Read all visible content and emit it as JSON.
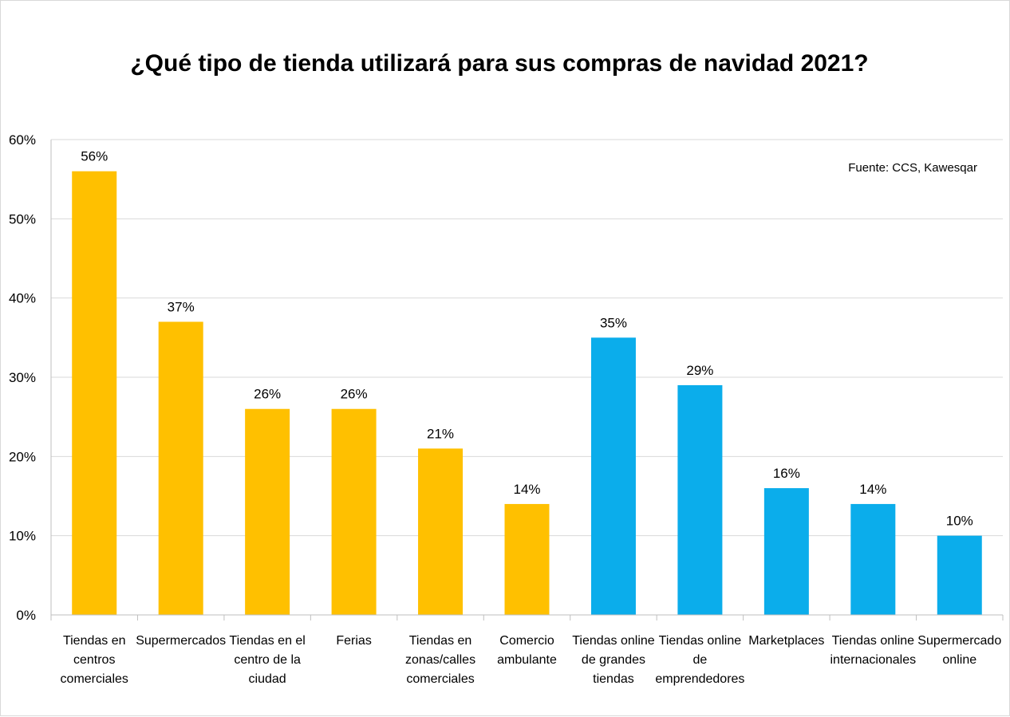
{
  "chart_data": {
    "type": "bar",
    "title": "¿Qué tipo de tienda utilizará para sus compras de navidad 2021?",
    "source_note": "Fuente: CCS, Kawesqar",
    "categories": [
      "Tiendas en centros comerciales",
      "Supermercados",
      "Tiendas en el centro de la ciudad",
      "Ferias",
      "Tiendas en zonas/calles comerciales",
      "Comercio ambulante",
      "Tiendas online de grandes tiendas",
      "Tiendas online de emprendedores",
      "Marketplaces",
      "Tiendas online internacionales",
      "Supermercado online"
    ],
    "category_lines": [
      [
        "Tiendas en",
        "centros",
        "comerciales"
      ],
      [
        "Supermercados"
      ],
      [
        "Tiendas en el",
        "centro de la",
        "ciudad"
      ],
      [
        "Ferias"
      ],
      [
        "Tiendas en",
        "zonas/calles",
        "comerciales"
      ],
      [
        "Comercio",
        "ambulante"
      ],
      [
        "Tiendas online",
        "de grandes",
        "tiendas"
      ],
      [
        "Tiendas online",
        "de",
        "emprendedores"
      ],
      [
        "Marketplaces"
      ],
      [
        "Tiendas online",
        "internacionales"
      ],
      [
        "Supermercado",
        "online"
      ]
    ],
    "values": [
      56,
      37,
      26,
      26,
      21,
      14,
      35,
      29,
      16,
      14,
      10
    ],
    "value_labels": [
      "56%",
      "37%",
      "26%",
      "26%",
      "21%",
      "14%",
      "35%",
      "29%",
      "16%",
      "14%",
      "10%"
    ],
    "groups": [
      "physical",
      "physical",
      "physical",
      "physical",
      "physical",
      "physical",
      "online",
      "online",
      "online",
      "online",
      "online"
    ],
    "group_colors": {
      "physical": "#FFC000",
      "online": "#0BADEB"
    },
    "ylim": [
      0,
      60
    ],
    "yticks": [
      0,
      10,
      20,
      30,
      40,
      50,
      60
    ],
    "ytick_labels": [
      "0%",
      "10%",
      "20%",
      "30%",
      "40%",
      "50%",
      "60%"
    ],
    "grid": true,
    "gridline_color": "#d9d9d9",
    "xlabel": "",
    "ylabel": ""
  }
}
